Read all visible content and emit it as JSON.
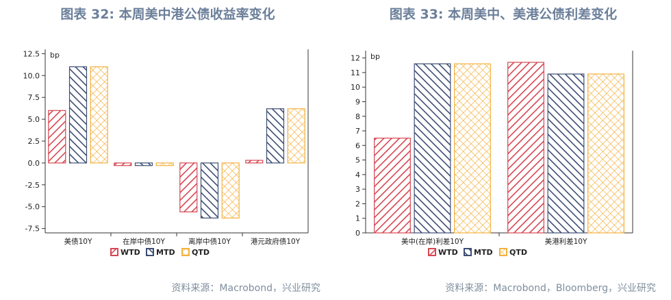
{
  "colors": {
    "WTD": "#d64550",
    "MTD": "#3c4d73",
    "QTD": "#f3b13e",
    "title": "#6b7f9a",
    "source": "#7f8e9d"
  },
  "chart_data": [
    {
      "type": "bar",
      "title": "图表 32: 本周美中港公债收益率变化",
      "ylabel": "bp",
      "ylim": [
        -8,
        13
      ],
      "yticks": [
        "12.5",
        "10.0",
        "7.5",
        "5.0",
        "2.5",
        "0.0",
        "-2.5",
        "-5.0",
        "-7.5"
      ],
      "ytick_values": [
        12.5,
        10,
        7.5,
        5,
        2.5,
        0,
        -2.5,
        -5,
        -7.5
      ],
      "categories": [
        "美债10Y",
        "在岸中债10Y",
        "离岸中债10Y",
        "港元政府债10Y"
      ],
      "series": [
        {
          "name": "WTD",
          "values": [
            6.0,
            -0.3,
            -5.6,
            0.3
          ]
        },
        {
          "name": "MTD",
          "values": [
            11.0,
            -0.3,
            -6.3,
            6.2
          ]
        },
        {
          "name": "QTD",
          "values": [
            11.0,
            -0.3,
            -6.3,
            6.2
          ]
        }
      ],
      "legend": "bottom",
      "source": "资料来源：Macrobond，兴业研究"
    },
    {
      "type": "bar",
      "title": "图表 33: 本周美中、美港公债利差变化",
      "ylabel": "bp",
      "ylim": [
        0,
        12.5
      ],
      "yticks": [
        "12",
        "11",
        "10",
        "9",
        "8",
        "7",
        "6",
        "5",
        "4",
        "3",
        "2",
        "1",
        "0"
      ],
      "ytick_values": [
        12,
        11,
        10,
        9,
        8,
        7,
        6,
        5,
        4,
        3,
        2,
        1,
        0
      ],
      "categories": [
        "美中(在岸)利差10Y",
        "美港利差10Y"
      ],
      "series": [
        {
          "name": "WTD",
          "values": [
            6.5,
            11.7
          ]
        },
        {
          "name": "MTD",
          "values": [
            11.6,
            10.9
          ]
        },
        {
          "name": "QTD",
          "values": [
            11.6,
            10.9
          ]
        }
      ],
      "legend": "bottom",
      "source": "资料来源：Macrobond，Bloomberg，兴业研究"
    }
  ]
}
